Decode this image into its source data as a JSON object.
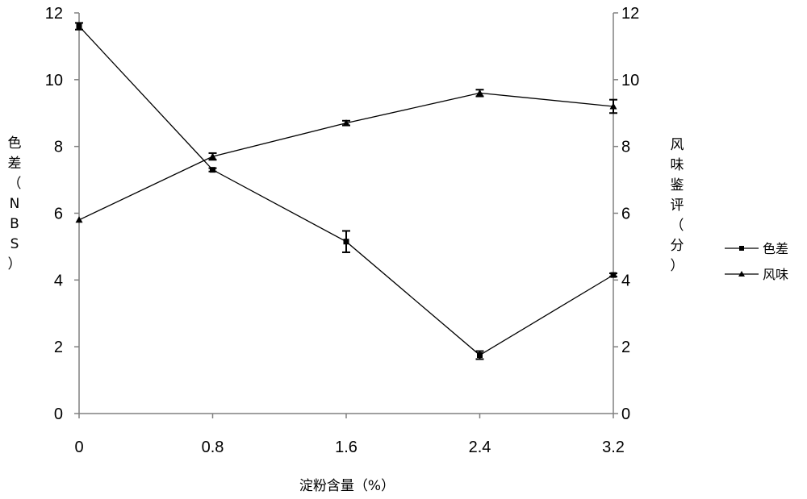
{
  "chart_data": {
    "type": "line",
    "x": [
      0,
      0.8,
      1.6,
      2.4,
      3.2
    ],
    "x_tick_labels": [
      "0",
      "0.8",
      "1.6",
      "2.4",
      "3.2"
    ],
    "xlabel": "淀粉含量（%）",
    "ylabel_left": "色差（NBS）",
    "ylabel_right": "风味鉴评（分）",
    "ylim_left": [
      0,
      12
    ],
    "ylim_right": [
      0,
      12
    ],
    "y_ticks_left": [
      "0",
      "2",
      "4",
      "6",
      "8",
      "10",
      "12"
    ],
    "y_ticks_right": [
      "0",
      "2",
      "4",
      "6",
      "8",
      "10",
      "12"
    ],
    "grid": false,
    "legend_position": "right",
    "series": [
      {
        "name": "色差",
        "axis": "left",
        "marker": "square",
        "color": "#000000",
        "values": [
          11.6,
          7.3,
          5.15,
          1.75,
          4.15
        ],
        "errors": [
          0.1,
          0.05,
          0.32,
          0.12,
          0.05
        ]
      },
      {
        "name": "风味",
        "axis": "right",
        "marker": "triangle",
        "color": "#000000",
        "values": [
          5.8,
          7.7,
          8.7,
          9.6,
          9.2
        ],
        "errors": [
          0.0,
          0.1,
          0.07,
          0.1,
          0.2
        ]
      }
    ]
  }
}
